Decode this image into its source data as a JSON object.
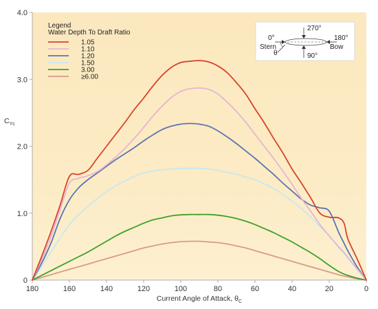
{
  "chart_data": {
    "type": "line",
    "title": "",
    "xlabel": "Current Angle of Attack, θ",
    "xlabel_sub": "C",
    "ylabel": "C",
    "ylabel_sub": "Yc",
    "xlim": [
      180,
      0
    ],
    "ylim": [
      0,
      4.0
    ],
    "x_ticks": [
      180,
      160,
      140,
      120,
      100,
      80,
      60,
      40,
      20,
      0
    ],
    "y_ticks": [
      {
        "value": 0,
        "label": "0"
      },
      {
        "value": 1.0,
        "label": "1.0"
      },
      {
        "value": 2.0,
        "label": "2.0"
      },
      {
        "value": 3.0,
        "label": "3.0"
      },
      {
        "value": 4.0,
        "label": "4.0"
      }
    ],
    "grid": false,
    "legend": {
      "placement": "top-left",
      "title_line1": "Legend",
      "title_line2": "Water Depth To Draft Ratio"
    },
    "x": [
      180,
      175,
      170,
      165,
      160,
      155,
      150,
      145,
      140,
      135,
      130,
      125,
      120,
      115,
      110,
      105,
      100,
      95,
      90,
      85,
      80,
      75,
      70,
      65,
      60,
      55,
      50,
      45,
      40,
      35,
      30,
      25,
      20,
      15,
      12,
      10,
      5,
      0
    ],
    "series": [
      {
        "name": "1.05",
        "color": "#d9412a",
        "values": [
          0,
          0.35,
          0.72,
          1.12,
          1.55,
          1.58,
          1.64,
          1.82,
          2.0,
          2.18,
          2.36,
          2.55,
          2.72,
          2.9,
          3.06,
          3.18,
          3.25,
          3.27,
          3.28,
          3.26,
          3.2,
          3.1,
          2.95,
          2.78,
          2.56,
          2.35,
          2.12,
          1.9,
          1.66,
          1.45,
          1.23,
          1.0,
          0.94,
          0.93,
          0.85,
          0.62,
          0.32,
          0
        ]
      },
      {
        "name": "1.10",
        "color": "#e6b4d2",
        "values": [
          0,
          0.3,
          0.65,
          1.05,
          1.45,
          1.52,
          1.56,
          1.62,
          1.72,
          1.84,
          1.97,
          2.12,
          2.28,
          2.45,
          2.6,
          2.73,
          2.82,
          2.86,
          2.87,
          2.85,
          2.78,
          2.66,
          2.52,
          2.36,
          2.18,
          2.0,
          1.82,
          1.63,
          1.43,
          1.22,
          1.03,
          0.83,
          0.66,
          0.5,
          0.41,
          0.34,
          0.17,
          0
        ]
      },
      {
        "name": "1.20",
        "color": "#5a74b0",
        "values": [
          0,
          0.25,
          0.55,
          0.92,
          1.2,
          1.38,
          1.5,
          1.6,
          1.7,
          1.8,
          1.89,
          1.98,
          2.08,
          2.17,
          2.25,
          2.3,
          2.33,
          2.34,
          2.33,
          2.3,
          2.23,
          2.14,
          2.04,
          1.93,
          1.82,
          1.7,
          1.58,
          1.45,
          1.33,
          1.21,
          1.12,
          1.08,
          1.03,
          0.72,
          0.55,
          0.44,
          0.2,
          0
        ]
      },
      {
        "name": "1.50",
        "color": "#c8e8ee",
        "values": [
          0,
          0.2,
          0.42,
          0.63,
          0.83,
          0.98,
          1.1,
          1.22,
          1.32,
          1.41,
          1.48,
          1.55,
          1.6,
          1.63,
          1.65,
          1.66,
          1.67,
          1.67,
          1.67,
          1.66,
          1.64,
          1.61,
          1.58,
          1.54,
          1.5,
          1.44,
          1.37,
          1.28,
          1.18,
          1.07,
          0.94,
          0.8,
          0.66,
          0.49,
          0.4,
          0.33,
          0.16,
          0
        ]
      },
      {
        "name": "3.00",
        "color": "#3ea02a",
        "values": [
          0,
          0.07,
          0.14,
          0.21,
          0.28,
          0.35,
          0.42,
          0.5,
          0.58,
          0.66,
          0.73,
          0.79,
          0.85,
          0.9,
          0.93,
          0.96,
          0.975,
          0.98,
          0.98,
          0.98,
          0.97,
          0.95,
          0.92,
          0.88,
          0.83,
          0.77,
          0.71,
          0.64,
          0.57,
          0.49,
          0.41,
          0.32,
          0.22,
          0.13,
          0.09,
          0.07,
          0.03,
          0
        ]
      },
      {
        "name": "≥6.00",
        "color": "#d99a86",
        "values": [
          0,
          0.04,
          0.08,
          0.12,
          0.16,
          0.2,
          0.24,
          0.28,
          0.32,
          0.36,
          0.4,
          0.44,
          0.48,
          0.51,
          0.54,
          0.56,
          0.575,
          0.58,
          0.58,
          0.57,
          0.56,
          0.54,
          0.51,
          0.48,
          0.44,
          0.4,
          0.36,
          0.32,
          0.28,
          0.24,
          0.2,
          0.16,
          0.12,
          0.08,
          0.06,
          0.05,
          0.02,
          0
        ]
      }
    ],
    "inset": {
      "top_label": "270°",
      "bottom_label": "90°",
      "left_label": "0°",
      "right_label": "180°",
      "stern_label": "Stern",
      "bow_label": "Bow",
      "theta_label": "θ"
    }
  }
}
